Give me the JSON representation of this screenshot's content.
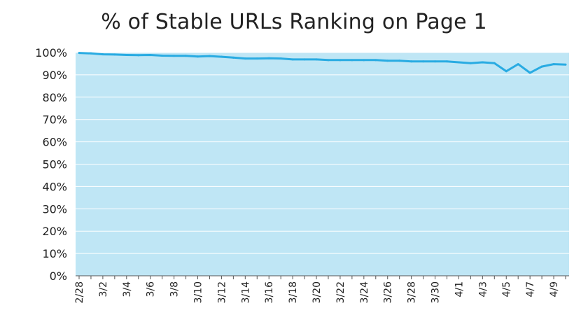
{
  "chart_data": {
    "type": "line",
    "title": "% of Stable URLs Ranking on Page 1",
    "xlabel": "",
    "ylabel": "",
    "ylim": [
      0,
      100
    ],
    "y_tick_labels": [
      "0%",
      "10%",
      "20%",
      "30%",
      "40%",
      "50%",
      "60%",
      "70%",
      "80%",
      "90%",
      "100%"
    ],
    "x_tick_labels": [
      "2/28",
      "3/2",
      "3/4",
      "3/6",
      "3/8",
      "3/10",
      "3/12",
      "3/14",
      "3/16",
      "3/18",
      "3/20",
      "3/22",
      "3/24",
      "3/26",
      "3/28",
      "3/30",
      "4/1",
      "4/3",
      "4/5",
      "4/7",
      "4/9"
    ],
    "x": [
      "2/28",
      "3/1",
      "3/2",
      "3/3",
      "3/4",
      "3/5",
      "3/6",
      "3/7",
      "3/8",
      "3/9",
      "3/10",
      "3/11",
      "3/12",
      "3/13",
      "3/14",
      "3/15",
      "3/16",
      "3/17",
      "3/18",
      "3/19",
      "3/20",
      "3/21",
      "3/22",
      "3/23",
      "3/24",
      "3/25",
      "3/26",
      "3/27",
      "3/28",
      "3/29",
      "3/30",
      "3/31",
      "4/1",
      "4/2",
      "4/3",
      "4/4",
      "4/5",
      "4/6",
      "4/7",
      "4/8",
      "4/9",
      "4/10"
    ],
    "series": [
      {
        "values": [
          99.8,
          99.6,
          99.2,
          99.1,
          98.9,
          98.8,
          98.9,
          98.6,
          98.5,
          98.5,
          98.2,
          98.4,
          98.1,
          97.7,
          97.3,
          97.3,
          97.4,
          97.3,
          96.9,
          96.9,
          96.9,
          96.6,
          96.6,
          96.6,
          96.6,
          96.6,
          96.3,
          96.3,
          96.0,
          96.0,
          96.0,
          96.0,
          95.6,
          95.2,
          95.6,
          95.2,
          91.6,
          94.8,
          90.9,
          93.7,
          94.8,
          94.6
        ]
      }
    ],
    "colors": {
      "plot_background": "#bfe6f5",
      "line": "#29abe2",
      "gridline": "#ffffff"
    },
    "grid": true,
    "legend": "none"
  }
}
